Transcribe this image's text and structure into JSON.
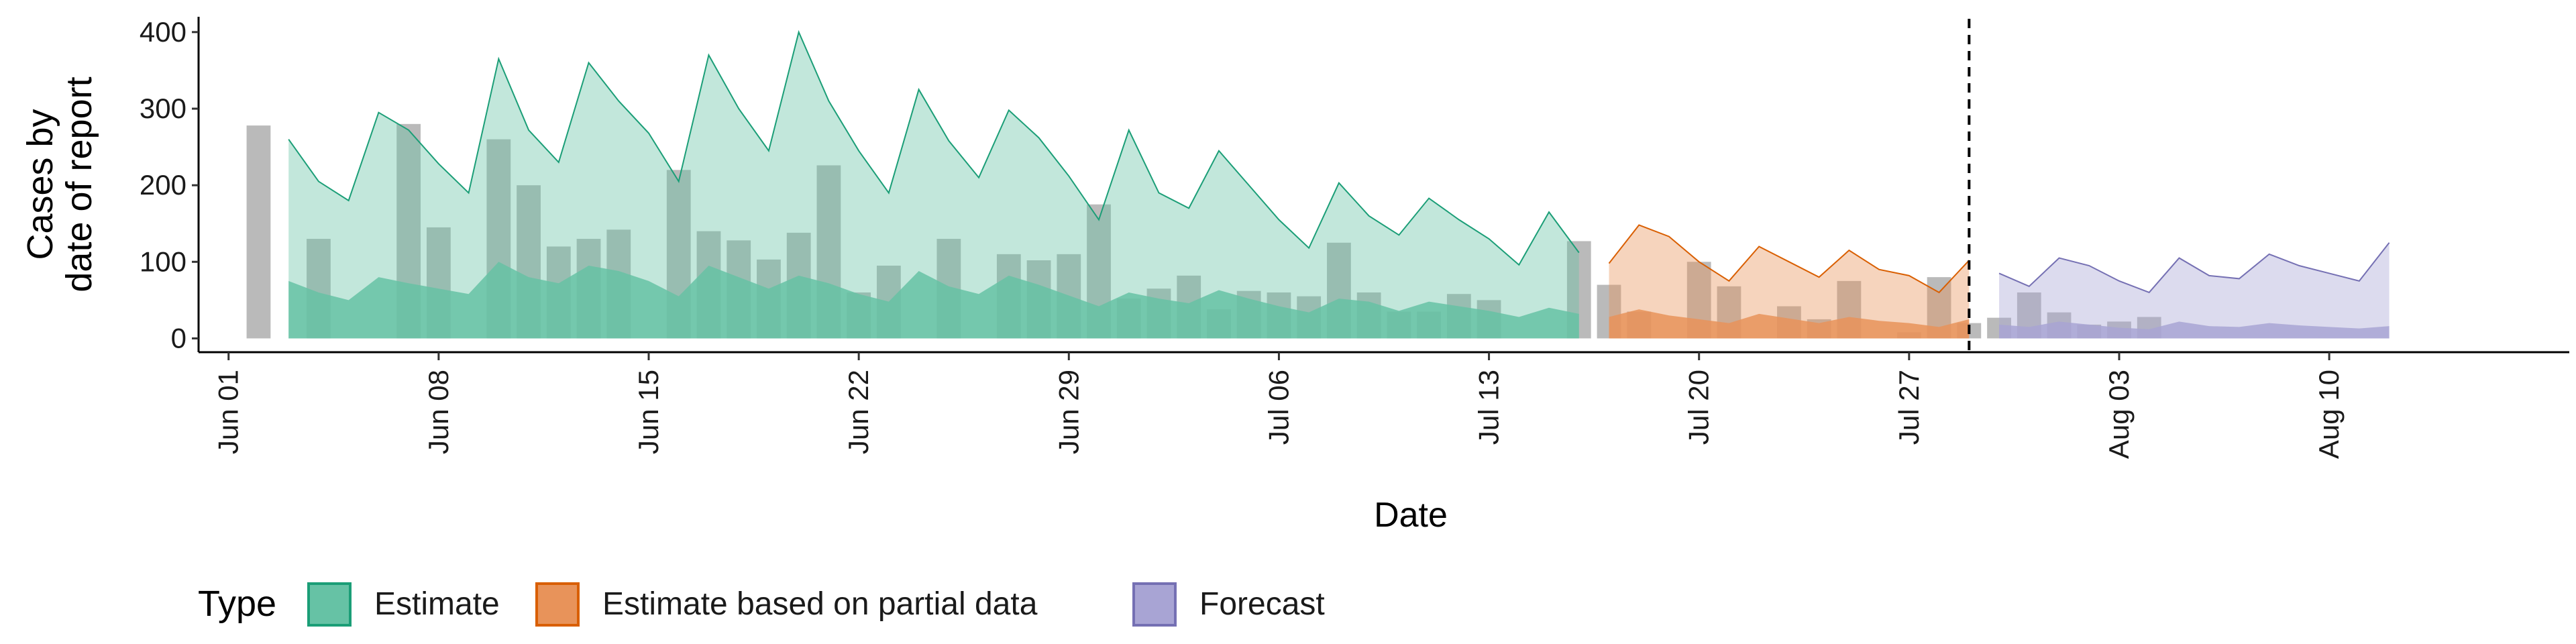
{
  "chart_data": {
    "type": "area",
    "title": "",
    "xlabel": "Date",
    "ylabel": "Cases by\ndate of report",
    "ylim": [
      -18,
      420
    ],
    "yticks": [
      0,
      100,
      200,
      300,
      400
    ],
    "xrange": [
      "2020-05-31",
      "2020-08-18"
    ],
    "xticks": [
      "2020-06-01",
      "2020-06-08",
      "2020-06-15",
      "2020-06-22",
      "2020-06-29",
      "2020-07-06",
      "2020-07-13",
      "2020-07-20",
      "2020-07-27",
      "2020-08-03",
      "2020-08-10"
    ],
    "xtick_labels": [
      "Jun 01",
      "Jun 08",
      "Jun 15",
      "Jun 22",
      "Jun 29",
      "Jul 06",
      "Jul 13",
      "Jul 20",
      "Jul 27",
      "Aug 03",
      "Aug 10"
    ],
    "reference_line_date": "2020-07-29",
    "grid": false,
    "legend": {
      "title": "Type",
      "position": "bottom-left",
      "items": [
        {
          "label": "Estimate",
          "fill": "#66c2a5",
          "stroke": "#1b9e77"
        },
        {
          "label": "Estimate based on partial data",
          "fill": "#e8935a",
          "stroke": "#d95f02"
        },
        {
          "label": "Forecast",
          "fill": "#a8a4d4",
          "stroke": "#7570b3"
        }
      ]
    },
    "reported_cases": {
      "color": "#a0a0a0",
      "start_date": "2020-06-02",
      "values": [
        278,
        0,
        130,
        0,
        0,
        280,
        145,
        0,
        260,
        200,
        120,
        130,
        142,
        0,
        220,
        140,
        128,
        103,
        138,
        226,
        60,
        95,
        0,
        130,
        0,
        110,
        102,
        110,
        175,
        52,
        65,
        82,
        38,
        62,
        60,
        55,
        125,
        60,
        35,
        35,
        58,
        50,
        0,
        0,
        127,
        70,
        35,
        0,
        100,
        68,
        0,
        42,
        25,
        75,
        0,
        8,
        80,
        20,
        27,
        60,
        34,
        18,
        22,
        28
      ]
    },
    "series": [
      {
        "name": "Estimate",
        "start_date": "2020-06-03",
        "upper": [
          260,
          205,
          180,
          295,
          272,
          228,
          190,
          365,
          272,
          230,
          360,
          310,
          268,
          205,
          370,
          300,
          245,
          400,
          310,
          245,
          190,
          325,
          258,
          210,
          298,
          262,
          212,
          155,
          272,
          190,
          170,
          245,
          200,
          155,
          118,
          203,
          160,
          135,
          183,
          155,
          130,
          96,
          165,
          112
        ],
        "lower": [
          75,
          60,
          50,
          80,
          72,
          65,
          58,
          100,
          80,
          72,
          95,
          88,
          75,
          55,
          95,
          80,
          65,
          82,
          72,
          58,
          48,
          88,
          68,
          58,
          82,
          70,
          56,
          42,
          60,
          52,
          46,
          63,
          52,
          42,
          34,
          52,
          48,
          36,
          48,
          42,
          36,
          28,
          40,
          32
        ]
      },
      {
        "name": "Estimate based on partial data",
        "start_date": "2020-07-17",
        "upper": [
          98,
          148,
          133,
          100,
          75,
          120,
          100,
          80,
          115,
          90,
          82,
          60,
          102
        ],
        "lower": [
          28,
          38,
          30,
          25,
          20,
          32,
          26,
          20,
          28,
          23,
          20,
          15,
          25
        ]
      },
      {
        "name": "Forecast",
        "start_date": "2020-07-30",
        "upper": [
          85,
          68,
          105,
          95,
          75,
          60,
          105,
          82,
          78,
          110,
          95,
          85,
          75,
          125
        ],
        "lower": [
          18,
          15,
          22,
          18,
          14,
          12,
          22,
          16,
          15,
          20,
          17,
          15,
          13,
          16
        ]
      }
    ]
  }
}
